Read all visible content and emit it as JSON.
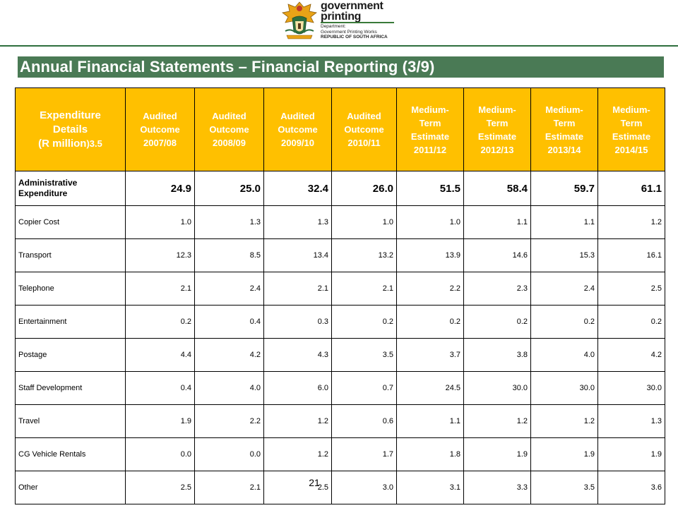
{
  "logo": {
    "line1": "government",
    "line2": "printing",
    "dept1": "Department:",
    "dept2": "Government Printing Works",
    "dept3": "REPUBLIC OF SOUTH AFRICA"
  },
  "title": "Annual Financial Statements – Financial Reporting (3/9)",
  "table": {
    "header_first": {
      "line1": "Expenditure",
      "line2": "Details",
      "line3a": "(R million",
      "line3b": ")3.5"
    },
    "headers": [
      [
        "Audited",
        "Outcome",
        "2007/08"
      ],
      [
        "Audited",
        "Outcome",
        "2008/09"
      ],
      [
        "Audited",
        "Outcome",
        "2009/10"
      ],
      [
        "Audited",
        "Outcome",
        "2010/11"
      ],
      [
        "Medium-",
        "Term",
        "Estimate",
        "2011/12"
      ],
      [
        "Medium-",
        "Term",
        "Estimate",
        "2012/13"
      ],
      [
        "Medium-",
        "Term",
        "Estimate",
        "2013/14"
      ],
      [
        "Medium-",
        "Term",
        "Estimate",
        "2014/15"
      ]
    ],
    "rows": [
      {
        "label": "Administrative Expenditure",
        "values": [
          "24.9",
          "25.0",
          "32.4",
          "26.0",
          "51.5",
          "58.4",
          "59.7",
          "61.1"
        ]
      },
      {
        "label": "Copier Cost",
        "values": [
          "1.0",
          "1.3",
          "1.3",
          "1.0",
          "1.0",
          "1.1",
          "1.1",
          "1.2"
        ]
      },
      {
        "label": "Transport",
        "values": [
          "12.3",
          "8.5",
          "13.4",
          "13.2",
          "13.9",
          "14.6",
          "15.3",
          "16.1"
        ]
      },
      {
        "label": "Telephone",
        "values": [
          "2.1",
          "2.4",
          "2.1",
          "2.1",
          "2.2",
          "2.3",
          "2.4",
          "2.5"
        ]
      },
      {
        "label": "Entertainment",
        "values": [
          "0.2",
          "0.4",
          "0.3",
          "0.2",
          "0.2",
          "0.2",
          "0.2",
          "0.2"
        ]
      },
      {
        "label": "Postage",
        "values": [
          "4.4",
          "4.2",
          "4.3",
          "3.5",
          "3.7",
          "3.8",
          "4.0",
          "4.2"
        ]
      },
      {
        "label": "Staff Development",
        "values": [
          "0.4",
          "4.0",
          "6.0",
          "0.7",
          "24.5",
          "30.0",
          "30.0",
          "30.0"
        ]
      },
      {
        "label": "Travel",
        "values": [
          "1.9",
          "2.2",
          "1.2",
          "0.6",
          "1.1",
          "1.2",
          "1.2",
          "1.3"
        ]
      },
      {
        "label": "CG Vehicle Rentals",
        "values": [
          "0.0",
          "0.0",
          "1.2",
          "1.7",
          "1.8",
          "1.9",
          "1.9",
          "1.9"
        ]
      },
      {
        "label": "Other",
        "values": [
          "2.5",
          "2.1",
          "2.5",
          "3.0",
          "3.1",
          "3.3",
          "3.5",
          "3.6"
        ]
      }
    ]
  },
  "page_number": "21",
  "colors": {
    "header_bg": "#ffc000",
    "title_bg": "#4a7a55",
    "rule": "#2e6f3e"
  },
  "icons": {
    "crest": "coat-of-arms-icon"
  }
}
